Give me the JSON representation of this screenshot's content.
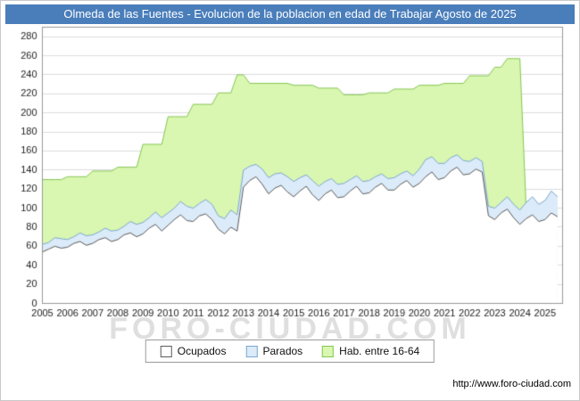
{
  "title": "Olmeda de las Fuentes - Evolucion de la poblacion en edad de Trabajar Agosto de 2025",
  "watermark": "FORO-CIUDAD.COM",
  "footer": {
    "url": "http://www.foro-ciudad.com"
  },
  "colors": {
    "title_bg": "#4a7ebb",
    "title_text": "#ffffff",
    "grid": "#dddddd",
    "axis_border": "#999999",
    "tick_text": "#222222"
  },
  "chart_data": {
    "type": "area",
    "title": "Olmeda de las Fuentes - Evolucion de la poblacion en edad de Trabajar Agosto de 2025",
    "xlabel": "",
    "ylabel": "",
    "xlim": [
      2005,
      2025.7
    ],
    "ylim": [
      0,
      290
    ],
    "grid": true,
    "legend_position": "bottom",
    "yticks": [
      0,
      20,
      40,
      60,
      80,
      100,
      120,
      140,
      160,
      180,
      200,
      220,
      240,
      260,
      280
    ],
    "xticks": [
      2005,
      2006,
      2007,
      2008,
      2009,
      2010,
      2011,
      2012,
      2013,
      2014,
      2015,
      2016,
      2017,
      2018,
      2019,
      2020,
      2021,
      2022,
      2023,
      2024,
      2025
    ],
    "x": [
      2005,
      2005.25,
      2005.5,
      2005.75,
      2006,
      2006.25,
      2006.5,
      2006.75,
      2007,
      2007.25,
      2007.5,
      2007.75,
      2008,
      2008.25,
      2008.5,
      2008.75,
      2009,
      2009.25,
      2009.5,
      2009.75,
      2010,
      2010.25,
      2010.5,
      2010.75,
      2011,
      2011.25,
      2011.5,
      2011.75,
      2012,
      2012.25,
      2012.5,
      2012.75,
      2013,
      2013.25,
      2013.5,
      2013.75,
      2014,
      2014.25,
      2014.5,
      2014.75,
      2015,
      2015.25,
      2015.5,
      2015.75,
      2016,
      2016.25,
      2016.5,
      2016.75,
      2017,
      2017.25,
      2017.5,
      2017.75,
      2018,
      2018.25,
      2018.5,
      2018.75,
      2019,
      2019.25,
      2019.5,
      2019.75,
      2020,
      2020.25,
      2020.5,
      2020.75,
      2021,
      2021.25,
      2021.5,
      2021.75,
      2022,
      2022.25,
      2022.5,
      2022.75,
      2023,
      2023.25,
      2023.5,
      2023.75,
      2024,
      2024.25,
      2024.5,
      2024.75,
      2025,
      2025.25,
      2025.5
    ],
    "series": [
      {
        "name": "Ocupados",
        "fill": "#ffffff",
        "stroke": "#5a5a5a",
        "stacked_on": null,
        "values": [
          54,
          57,
          60,
          58,
          59,
          63,
          65,
          61,
          63,
          67,
          69,
          65,
          67,
          72,
          74,
          70,
          73,
          79,
          83,
          76,
          82,
          88,
          93,
          87,
          86,
          92,
          94,
          88,
          78,
          73,
          80,
          76,
          122,
          129,
          133,
          125,
          115,
          121,
          124,
          117,
          112,
          118,
          123,
          114,
          108,
          115,
          119,
          111,
          112,
          118,
          123,
          115,
          116,
          122,
          126,
          119,
          119,
          125,
          129,
          122,
          126,
          133,
          138,
          130,
          132,
          139,
          143,
          135,
          136,
          141,
          138,
          92,
          88,
          95,
          99,
          90,
          83,
          89,
          93,
          86,
          88,
          95,
          91
        ]
      },
      {
        "name": "Parados",
        "fill": "#dcebf9",
        "stroke": "#7ba7cf",
        "stacked_on": "Ocupados",
        "values": [
          8,
          7,
          9,
          10,
          8,
          7,
          9,
          10,
          9,
          8,
          10,
          11,
          10,
          9,
          12,
          13,
          12,
          11,
          13,
          14,
          13,
          12,
          14,
          15,
          14,
          13,
          15,
          16,
          14,
          16,
          18,
          17,
          18,
          15,
          13,
          16,
          17,
          15,
          13,
          16,
          16,
          14,
          12,
          15,
          15,
          13,
          12,
          14,
          14,
          12,
          11,
          13,
          13,
          11,
          10,
          12,
          13,
          11,
          10,
          12,
          15,
          18,
          16,
          17,
          15,
          14,
          13,
          15,
          13,
          12,
          11,
          10,
          12,
          11,
          13,
          14,
          15,
          17,
          19,
          18,
          20,
          23,
          21
        ]
      },
      {
        "name": "Hab. entre 16-64",
        "fill": "#d9f7b0",
        "stroke": "#85c554",
        "stacked_on": null,
        "values": [
          130,
          130,
          130,
          130,
          133,
          133,
          133,
          133,
          139,
          139,
          139,
          139,
          143,
          143,
          143,
          143,
          167,
          167,
          167,
          167,
          196,
          196,
          196,
          196,
          209,
          209,
          209,
          209,
          221,
          221,
          221,
          240,
          240,
          231,
          231,
          231,
          231,
          231,
          231,
          231,
          229,
          229,
          229,
          229,
          226,
          226,
          226,
          226,
          219,
          219,
          219,
          219,
          221,
          221,
          221,
          221,
          225,
          225,
          225,
          225,
          229,
          229,
          229,
          229,
          231,
          231,
          231,
          231,
          239,
          239,
          239,
          239,
          248,
          248,
          257,
          257,
          257,
          100,
          100,
          100,
          98,
          98,
          98
        ]
      }
    ]
  }
}
